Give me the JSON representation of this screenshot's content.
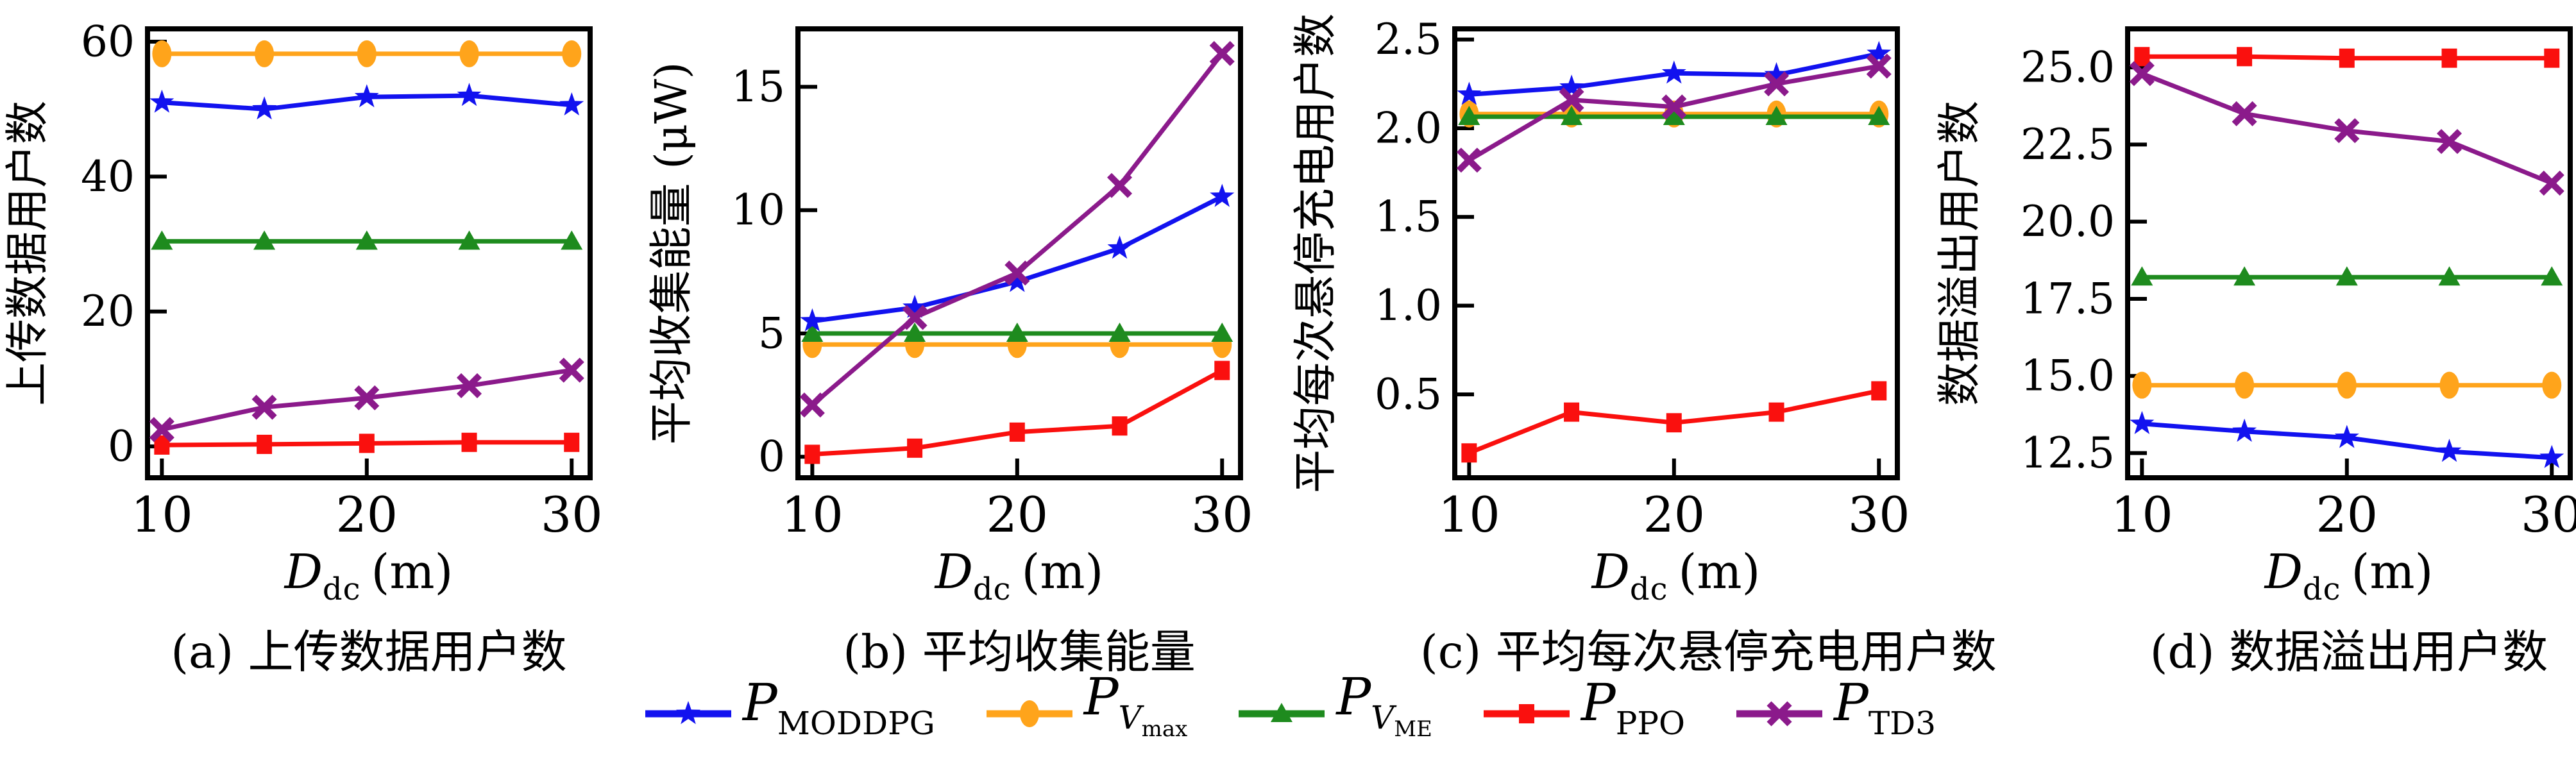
{
  "page": {
    "background": "#ffffff"
  },
  "legend": {
    "items": [
      {
        "id": "moddpg",
        "label_main": "P",
        "label_sub": "MODDPG",
        "color": "#1212EF",
        "marker": "star"
      },
      {
        "id": "vmax",
        "label_main": "P",
        "label_sub": "V",
        "label_subsub": "max",
        "color": "#FFA41B",
        "marker": "ellipse"
      },
      {
        "id": "vme",
        "label_main": "P",
        "label_sub": "V",
        "label_subsub": "ME",
        "color": "#1E8B1E",
        "marker": "triangle"
      },
      {
        "id": "ppo",
        "label_main": "P",
        "label_sub": "PPO",
        "color": "#FA100E",
        "marker": "square"
      },
      {
        "id": "td3",
        "label_main": "P",
        "label_sub": "TD3",
        "color": "#8B1A8B",
        "marker": "xcross"
      }
    ],
    "draw_order": [
      "vmax",
      "vme",
      "moddpg",
      "ppo",
      "td3"
    ]
  },
  "chart_data": [
    {
      "id": "a",
      "type": "line",
      "caption": "(a) 上传数据用户数",
      "ylabel": "上传数据用户数",
      "xlabel": {
        "main": "D",
        "sub": "dc",
        "unit": "(m)"
      },
      "x": [
        10,
        15,
        20,
        25,
        30
      ],
      "xlim": [
        9.3,
        30.9
      ],
      "xticks": [
        10,
        20,
        30
      ],
      "xtick_labels": [
        "10",
        "20",
        "30"
      ],
      "ylim": [
        -4.65,
        61.9
      ],
      "yticks": [
        0,
        20,
        40,
        60
      ],
      "ytick_labels": [
        "0",
        "20",
        "40",
        "60"
      ],
      "grid": false,
      "series": [
        {
          "name": "P_MODDPG",
          "legend_id": "moddpg",
          "values": [
            51.0,
            50.0,
            51.8,
            52.0,
            50.6
          ]
        },
        {
          "name": "P_Vmax",
          "legend_id": "vmax",
          "values": [
            58.2,
            58.2,
            58.2,
            58.2,
            58.2
          ]
        },
        {
          "name": "P_VME",
          "legend_id": "vme",
          "values": [
            30.4,
            30.4,
            30.4,
            30.4,
            30.4
          ]
        },
        {
          "name": "P_PPO",
          "legend_id": "ppo",
          "values": [
            0.2,
            0.3,
            0.45,
            0.6,
            0.6
          ]
        },
        {
          "name": "P_TD3",
          "legend_id": "td3",
          "values": [
            2.5,
            5.8,
            7.2,
            9.0,
            11.3
          ]
        }
      ]
    },
    {
      "id": "b",
      "type": "line",
      "caption": "(b) 平均收集能量",
      "ylabel": "平均收集能量 (μW)",
      "xlabel": {
        "main": "D",
        "sub": "dc",
        "unit": "(m)"
      },
      "x": [
        10,
        15,
        20,
        25,
        30
      ],
      "xlim": [
        9.3,
        30.9
      ],
      "xticks": [
        10,
        20,
        30
      ],
      "xtick_labels": [
        "10",
        "20",
        "30"
      ],
      "ylim": [
        -0.85,
        17.35
      ],
      "yticks": [
        0,
        5,
        10,
        15
      ],
      "ytick_labels": [
        "0",
        "5",
        "10",
        "15"
      ],
      "grid": false,
      "series": [
        {
          "name": "P_MODDPG",
          "legend_id": "moddpg",
          "values": [
            5.5,
            6.05,
            7.1,
            8.45,
            10.55
          ]
        },
        {
          "name": "P_Vmax",
          "legend_id": "vmax",
          "values": [
            4.55,
            4.55,
            4.55,
            4.55,
            4.55
          ]
        },
        {
          "name": "P_VME",
          "legend_id": "vme",
          "values": [
            5.0,
            5.0,
            5.0,
            5.0,
            5.0
          ]
        },
        {
          "name": "P_PPO",
          "legend_id": "ppo",
          "values": [
            0.1,
            0.35,
            1.0,
            1.25,
            3.5
          ]
        },
        {
          "name": "P_TD3",
          "legend_id": "td3",
          "values": [
            2.1,
            5.65,
            7.45,
            11.0,
            16.35
          ]
        }
      ]
    },
    {
      "id": "c",
      "type": "line",
      "caption": "(c) 平均每次悬停充电用户数",
      "ylabel": "平均每次悬停充电用户数",
      "xlabel": {
        "main": "D",
        "sub": "dc",
        "unit": "(m)"
      },
      "x": [
        10,
        15,
        20,
        25,
        30
      ],
      "xlim": [
        9.3,
        30.9
      ],
      "xticks": [
        10,
        20,
        30
      ],
      "xtick_labels": [
        "10",
        "20",
        "30"
      ],
      "ylim": [
        0.03,
        2.56
      ],
      "yticks": [
        0.5,
        1.0,
        1.5,
        2.0,
        2.5
      ],
      "ytick_labels": [
        "0.5",
        "1.0",
        "1.5",
        "2.0",
        "2.5"
      ],
      "grid": false,
      "series": [
        {
          "name": "P_MODDPG",
          "legend_id": "moddpg",
          "values": [
            2.19,
            2.23,
            2.31,
            2.3,
            2.42
          ]
        },
        {
          "name": "P_Vmax",
          "legend_id": "vmax",
          "values": [
            2.08,
            2.08,
            2.08,
            2.08,
            2.08
          ]
        },
        {
          "name": "P_VME",
          "legend_id": "vme",
          "values": [
            2.065,
            2.065,
            2.065,
            2.065,
            2.065
          ]
        },
        {
          "name": "P_PPO",
          "legend_id": "ppo",
          "values": [
            0.17,
            0.4,
            0.34,
            0.4,
            0.52
          ]
        },
        {
          "name": "P_TD3",
          "legend_id": "td3",
          "values": [
            1.82,
            2.16,
            2.12,
            2.25,
            2.35
          ]
        }
      ]
    },
    {
      "id": "d",
      "type": "line",
      "caption": "(d) 数据溢出用户数",
      "ylabel": "数据溢出用户数",
      "xlabel": {
        "main": "D",
        "sub": "dc",
        "unit": "(m)"
      },
      "x": [
        10,
        15,
        20,
        25,
        30
      ],
      "xlim": [
        9.3,
        30.9
      ],
      "xticks": [
        10,
        20,
        30
      ],
      "xtick_labels": [
        "10",
        "20",
        "30"
      ],
      "ylim": [
        11.7,
        26.25
      ],
      "yticks": [
        12.5,
        15.0,
        17.5,
        20.0,
        22.5,
        25.0
      ],
      "ytick_labels": [
        "12.5",
        "15.0",
        "17.5",
        "20.0",
        "22.5",
        "25.0"
      ],
      "grid": false,
      "series": [
        {
          "name": "P_MODDPG",
          "legend_id": "moddpg",
          "values": [
            13.45,
            13.2,
            13.0,
            12.55,
            12.35
          ]
        },
        {
          "name": "P_Vmax",
          "legend_id": "vmax",
          "values": [
            14.7,
            14.7,
            14.7,
            14.7,
            14.7
          ]
        },
        {
          "name": "P_VME",
          "legend_id": "vme",
          "values": [
            18.2,
            18.2,
            18.2,
            18.2,
            18.2
          ]
        },
        {
          "name": "P_PPO",
          "legend_id": "ppo",
          "values": [
            25.35,
            25.35,
            25.3,
            25.3,
            25.3
          ]
        },
        {
          "name": "P_TD3",
          "legend_id": "td3",
          "values": [
            24.8,
            23.5,
            22.95,
            22.6,
            21.25
          ]
        }
      ]
    }
  ]
}
